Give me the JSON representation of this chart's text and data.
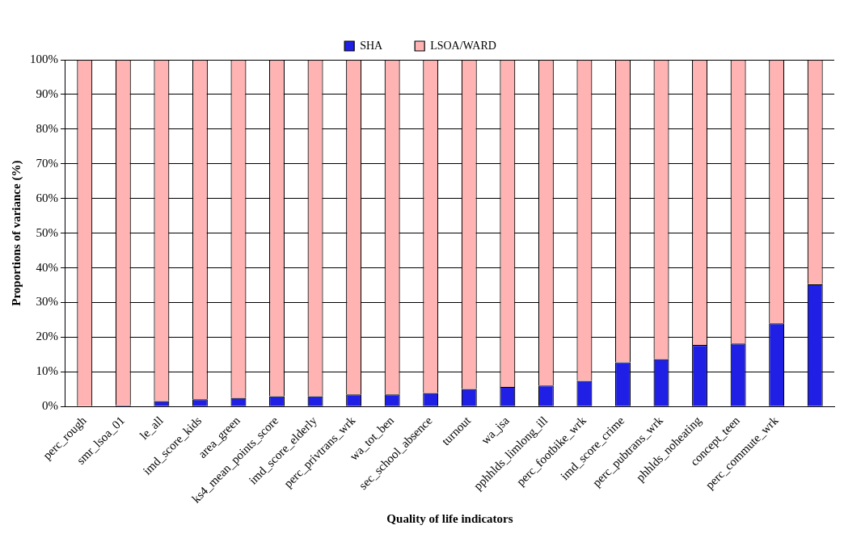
{
  "chart_data": {
    "type": "bar",
    "stacked": true,
    "xlabel": "Quality of life indicators",
    "ylabel": "Proportions of variance (%)",
    "categories": [
      "perc_rough",
      "smr_lsoa_01",
      "le_all",
      "imd_score_kids",
      "area_green",
      "ks4_mean_points_score",
      "imd_score_elderly",
      "perc_privtrans_wrk",
      "wa_tot_ben",
      "sec_school_absence",
      "turnout",
      "wa_jsa",
      "pphhlds_limlong_ill",
      "perc_footbike_wrk",
      "imd_score_crime",
      "perc_pubtrans_wrk",
      "phhlds_noheating",
      "concept_teen",
      "perc_commute_wrk",
      null
    ],
    "series": [
      {
        "name": "SHA",
        "color": "#1f1fe6",
        "values": [
          0,
          0.4,
          1.6,
          2.1,
          2.5,
          3.0,
          3.0,
          3.5,
          3.5,
          3.9,
          5.1,
          5.7,
          6.1,
          7.4,
          12.8,
          13.7,
          17.8,
          18.2,
          24.0,
          35.3
        ]
      },
      {
        "name": "LSOA/WARD",
        "color": "#ffb3b3",
        "values": [
          100,
          99.6,
          98.4,
          97.9,
          97.5,
          97.0,
          97.0,
          96.5,
          96.5,
          96.1,
          94.9,
          94.3,
          93.9,
          92.6,
          87.2,
          86.3,
          82.2,
          81.8,
          76.0,
          64.7
        ]
      }
    ],
    "ylim": [
      0,
      100
    ],
    "yticks": [
      {
        "value": 0,
        "label": "0%"
      },
      {
        "value": 10,
        "label": "10%"
      },
      {
        "value": 20,
        "label": "20%"
      },
      {
        "value": 30,
        "label": "30%"
      },
      {
        "value": 40,
        "label": "40%"
      },
      {
        "value": 50,
        "label": "50%"
      },
      {
        "value": 60,
        "label": "60%"
      },
      {
        "value": 70,
        "label": "70%"
      },
      {
        "value": 80,
        "label": "80%"
      },
      {
        "value": 90,
        "label": "90%"
      },
      {
        "value": 100,
        "label": "100%"
      }
    ],
    "grid": "y",
    "legend": "top"
  }
}
